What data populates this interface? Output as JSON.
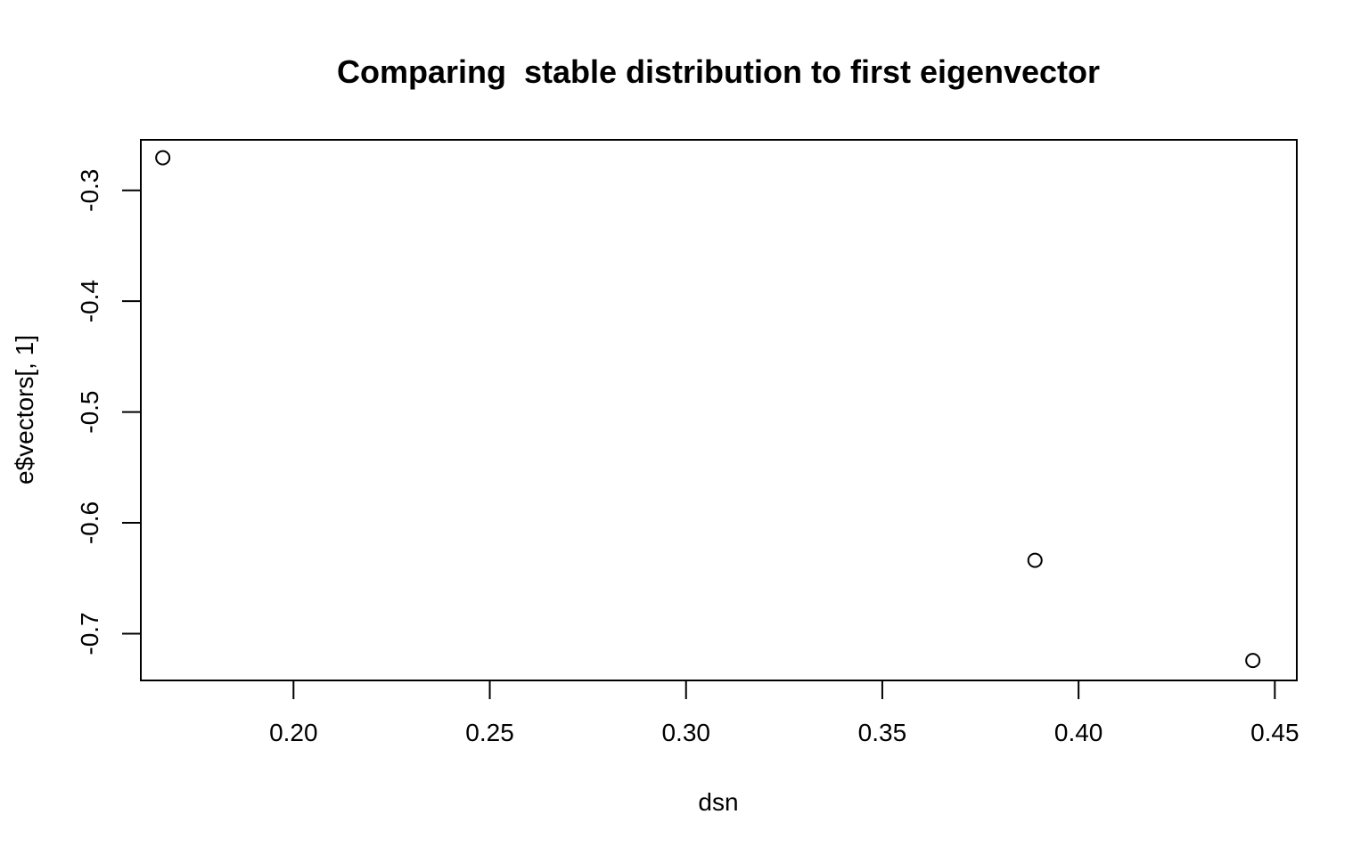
{
  "chart_data": {
    "type": "scatter",
    "title": "Comparing  stable distribution to first eigenvector",
    "xlabel": "dsn",
    "ylabel": "e$vectors[, 1]",
    "xlim": [
      0.1611,
      0.4556
    ],
    "ylim": [
      -0.7422,
      -0.2544
    ],
    "x_ticks": [
      0.2,
      0.25,
      0.3,
      0.35,
      0.4,
      0.45
    ],
    "x_tick_labels": [
      "0.20",
      "0.25",
      "0.30",
      "0.35",
      "0.40",
      "0.45"
    ],
    "y_ticks": [
      -0.3,
      -0.4,
      -0.5,
      -0.6,
      -0.7
    ],
    "y_tick_labels": [
      "-0.3",
      "-0.4",
      "-0.5",
      "-0.6",
      "-0.7"
    ],
    "grid": false,
    "marker": "open-circle",
    "points": [
      {
        "x": 0.1667,
        "y": -0.2706
      },
      {
        "x": 0.3889,
        "y": -0.6338
      },
      {
        "x": 0.4444,
        "y": -0.7242
      }
    ]
  }
}
